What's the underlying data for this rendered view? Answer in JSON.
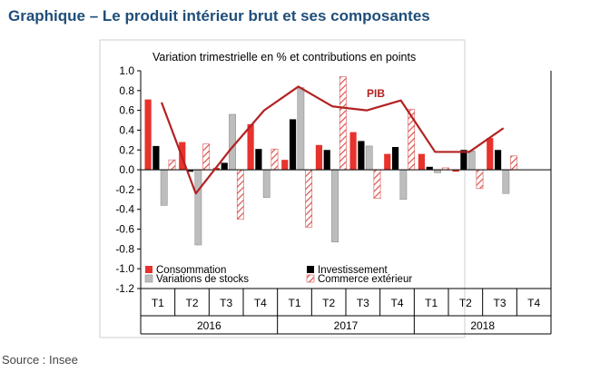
{
  "page": {
    "title": "Graphique – Le produit intérieur brut et ses composantes",
    "source": "Source : Insee"
  },
  "colors": {
    "consommation": "#e8322c",
    "investissement": "#000000",
    "stocks": "#bdbdbd",
    "commerce": "#d9534f",
    "pib": "#b22222",
    "title": "#1f4e79"
  },
  "chart_data": {
    "type": "bar",
    "title": "Variation trimestrielle en % et contributions en points",
    "ylim": [
      -1.2,
      1.0
    ],
    "yticks": [
      "1.0",
      "0.8",
      "0.6",
      "0.4",
      "0.2",
      "0.0",
      "-0.2",
      "-0.4",
      "-0.6",
      "-0.8",
      "-1.0",
      "-1.2"
    ],
    "categories": [
      "T1",
      "T2",
      "T3",
      "T4",
      "T1",
      "T2",
      "T3",
      "T4",
      "T1",
      "T2",
      "T3",
      "T4"
    ],
    "years": [
      "2016",
      "2017",
      "2018"
    ],
    "series": [
      {
        "name": "Consommation",
        "values": [
          0.71,
          0.28,
          0.02,
          0.46,
          0.1,
          0.25,
          0.38,
          0.16,
          0.16,
          -0.02,
          0.32,
          null
        ]
      },
      {
        "name": "Investissement",
        "values": [
          0.24,
          -0.02,
          0.07,
          0.21,
          0.51,
          0.2,
          0.29,
          0.23,
          0.03,
          0.2,
          0.2,
          null
        ]
      },
      {
        "name": "Variations de stocks",
        "values": [
          -0.36,
          -0.76,
          0.56,
          -0.28,
          0.83,
          -0.73,
          0.24,
          -0.3,
          -0.03,
          0.19,
          -0.24,
          null
        ]
      },
      {
        "name": "Commerce extérieur",
        "values": [
          0.1,
          0.26,
          -0.5,
          0.21,
          -0.58,
          0.94,
          -0.29,
          0.61,
          0.02,
          -0.19,
          0.14,
          null
        ]
      }
    ],
    "line": {
      "name": "PIB",
      "values": [
        0.68,
        -0.24,
        0.2,
        0.6,
        0.84,
        0.64,
        0.6,
        0.7,
        0.18,
        0.18,
        0.42,
        null
      ]
    },
    "legend_position": "bottom-inside"
  }
}
